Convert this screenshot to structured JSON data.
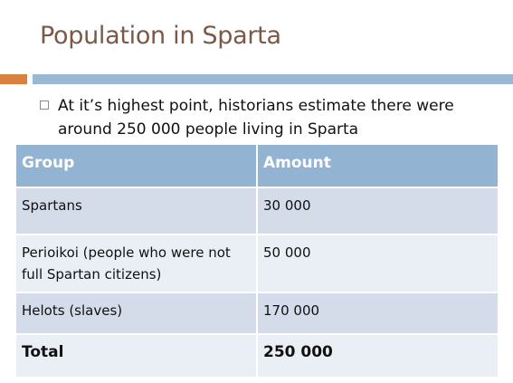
{
  "slide": {
    "title": "Population in Sparta",
    "bullet": "At it’s highest point, historians estimate there were around 250 000 people living in Sparta"
  },
  "table": {
    "headers": [
      "Group",
      "Amount"
    ],
    "rows": [
      [
        "Spartans",
        "30 000"
      ],
      [
        "Perioikoi (people who were not full Spartan citizens)",
        "50 000"
      ],
      [
        "Helots (slaves)",
        "170 000"
      ],
      [
        "Total",
        "250 000"
      ]
    ]
  },
  "colors": {
    "title": "#7a5a47",
    "accent_orange": "#d9823f",
    "accent_blue": "#9ab7d3",
    "header_fill": "#93b3d3",
    "row_dark": "#d4dcea",
    "row_light": "#eaeff6"
  },
  "icons": {
    "bullet": "square-bullet-icon"
  }
}
